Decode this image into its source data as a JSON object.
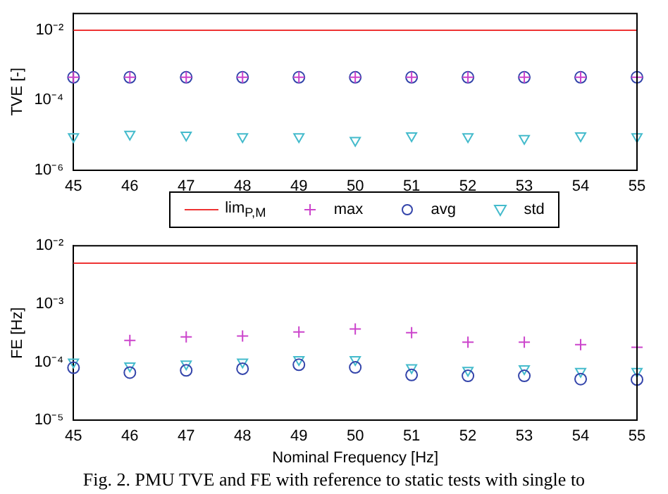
{
  "chart_data": [
    {
      "type": "scatter",
      "ylabel": "TVE [-]",
      "x": [
        45,
        46,
        47,
        48,
        49,
        50,
        51,
        52,
        53,
        54,
        55
      ],
      "xlim": [
        45,
        55
      ],
      "xticks": [
        45,
        46,
        47,
        48,
        49,
        50,
        51,
        52,
        53,
        54,
        55
      ],
      "log": "y",
      "ylim": [
        1e-06,
        0.03
      ],
      "yticks": [
        {
          "value": 1e-06,
          "label": "10⁻⁶"
        },
        {
          "value": 0.0001,
          "label": "10⁻⁴"
        },
        {
          "value": 0.01,
          "label": "10⁻²"
        }
      ],
      "grid": false,
      "legend": "bottom",
      "series": [
        {
          "name": "lim$_{P,M}$",
          "type": "line",
          "marker": "none",
          "color": "#ee3333",
          "values": [
            0.01,
            0.01,
            0.01,
            0.01,
            0.01,
            0.01,
            0.01,
            0.01,
            0.01,
            0.01,
            0.01
          ]
        },
        {
          "name": "max",
          "marker": "cross",
          "color": "#cc44cc",
          "values": [
            0.00045,
            0.00045,
            0.00045,
            0.00045,
            0.00045,
            0.00045,
            0.00045,
            0.00045,
            0.00045,
            0.00045,
            0.00045
          ]
        },
        {
          "name": "avg",
          "marker": "circle",
          "color": "#3344aa",
          "values": [
            0.00045,
            0.00045,
            0.00045,
            0.00045,
            0.00045,
            0.00045,
            0.00045,
            0.00045,
            0.00045,
            0.00045,
            0.00045
          ]
        },
        {
          "name": "std",
          "marker": "triangle",
          "color": "#44bbcc",
          "values": [
            9e-06,
            1.05e-05,
            1e-05,
            9e-06,
            9e-06,
            7e-06,
            9.5e-06,
            9e-06,
            8e-06,
            9.5e-06,
            9e-06
          ]
        }
      ]
    },
    {
      "type": "scatter",
      "xlabel": "Nominal Frequency [Hz]",
      "ylabel": "FE [Hz]",
      "x": [
        45,
        46,
        47,
        48,
        49,
        50,
        51,
        52,
        53,
        54,
        55
      ],
      "xlim": [
        45,
        55
      ],
      "xticks": [
        45,
        46,
        47,
        48,
        49,
        50,
        51,
        52,
        53,
        54,
        55
      ],
      "log": "y",
      "ylim": [
        1e-05,
        0.01
      ],
      "yticks": [
        {
          "value": 1e-05,
          "label": "10⁻⁵"
        },
        {
          "value": 0.0001,
          "label": "10⁻⁴"
        },
        {
          "value": 0.001,
          "label": "10⁻³"
        },
        {
          "value": 0.01,
          "label": "10⁻²"
        }
      ],
      "grid": false,
      "annotations": [
        "Fig. 2. PMU TVE and FE with reference to static tests with single to"
      ],
      "series": [
        {
          "type": "line",
          "marker": "none",
          "color": "#ee3333",
          "values": [
            0.005,
            0.005,
            0.005,
            0.005,
            0.005,
            0.005,
            0.005,
            0.005,
            0.005,
            0.005,
            0.005
          ]
        },
        {
          "marker": "cross",
          "color": "#cc44cc",
          "values": [
            null,
            0.000235,
            0.00027,
            0.00028,
            0.00033,
            0.00037,
            0.00032,
            0.00022,
            0.00022,
            0.0002,
            0.00018
          ]
        },
        {
          "marker": "circle",
          "color": "#3344aa",
          "values": [
            8e-05,
            6.6e-05,
            7.2e-05,
            7.7e-05,
            9e-05,
            8.1e-05,
            6e-05,
            5.8e-05,
            5.8e-05,
            5.1e-05,
            5e-05
          ]
        },
        {
          "marker": "triangle",
          "color": "#44bbcc",
          "values": [
            0.0001,
            8.6e-05,
            9.3e-05,
            0.0001,
            0.00011,
            0.00011,
            8e-05,
            7.2e-05,
            7.7e-05,
            6.9e-05,
            6.9e-05
          ]
        }
      ]
    }
  ]
}
